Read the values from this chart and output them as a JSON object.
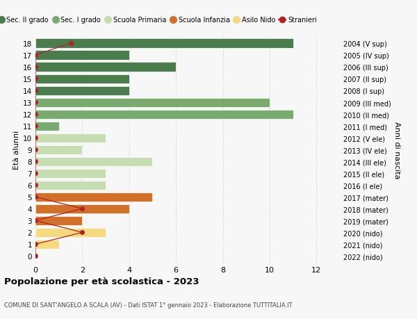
{
  "ages": [
    18,
    17,
    16,
    15,
    14,
    13,
    12,
    11,
    10,
    9,
    8,
    7,
    6,
    5,
    4,
    3,
    2,
    1,
    0
  ],
  "right_labels": [
    "2004 (V sup)",
    "2005 (IV sup)",
    "2006 (III sup)",
    "2007 (II sup)",
    "2008 (I sup)",
    "2009 (III med)",
    "2010 (II med)",
    "2011 (I med)",
    "2012 (V ele)",
    "2013 (IV ele)",
    "2014 (III ele)",
    "2015 (II ele)",
    "2016 (I ele)",
    "2017 (mater)",
    "2018 (mater)",
    "2019 (mater)",
    "2020 (nido)",
    "2021 (nido)",
    "2022 (nido)"
  ],
  "bar_values": [
    11,
    4,
    6,
    4,
    4,
    10,
    11,
    1,
    3,
    2,
    5,
    3,
    3,
    5,
    4,
    2,
    3,
    1,
    0
  ],
  "bar_colors": [
    "#4a7c4e",
    "#4a7c4e",
    "#4a7c4e",
    "#4a7c4e",
    "#4a7c4e",
    "#7aab6e",
    "#7aab6e",
    "#7aab6e",
    "#c5ddb0",
    "#c5ddb0",
    "#c5ddb0",
    "#c5ddb0",
    "#c5ddb0",
    "#d2702a",
    "#d2702a",
    "#d2702a",
    "#f5d97e",
    "#f5d97e",
    "#f5d97e"
  ],
  "stranieri_x": [
    1.5,
    0,
    0,
    0,
    0,
    0,
    0,
    0,
    0,
    0,
    0,
    0,
    0,
    0,
    2,
    0,
    2,
    0,
    0
  ],
  "stranieri_color": "#b22222",
  "title": "Popolazione per età scolastica - 2023",
  "subtitle": "COMUNE DI SANT'ANGELO A SCALA (AV) - Dati ISTAT 1° gennaio 2023 - Elaborazione TUTTITALIA.IT",
  "ylabel_left": "Età alunni",
  "ylabel_right": "Anni di nascita",
  "xlim": [
    0,
    13
  ],
  "xticks": [
    0,
    2,
    4,
    6,
    8,
    10,
    12
  ],
  "legend_labels": [
    "Sec. II grado",
    "Sec. I grado",
    "Scuola Primaria",
    "Scuola Infanzia",
    "Asilo Nido",
    "Stranieri"
  ],
  "legend_colors": [
    "#4a7c4e",
    "#7aab6e",
    "#c5ddb0",
    "#d2702a",
    "#f5d97e",
    "#b22222"
  ],
  "bg_color": "#f7f7f7",
  "grid_color": "#dddddd"
}
